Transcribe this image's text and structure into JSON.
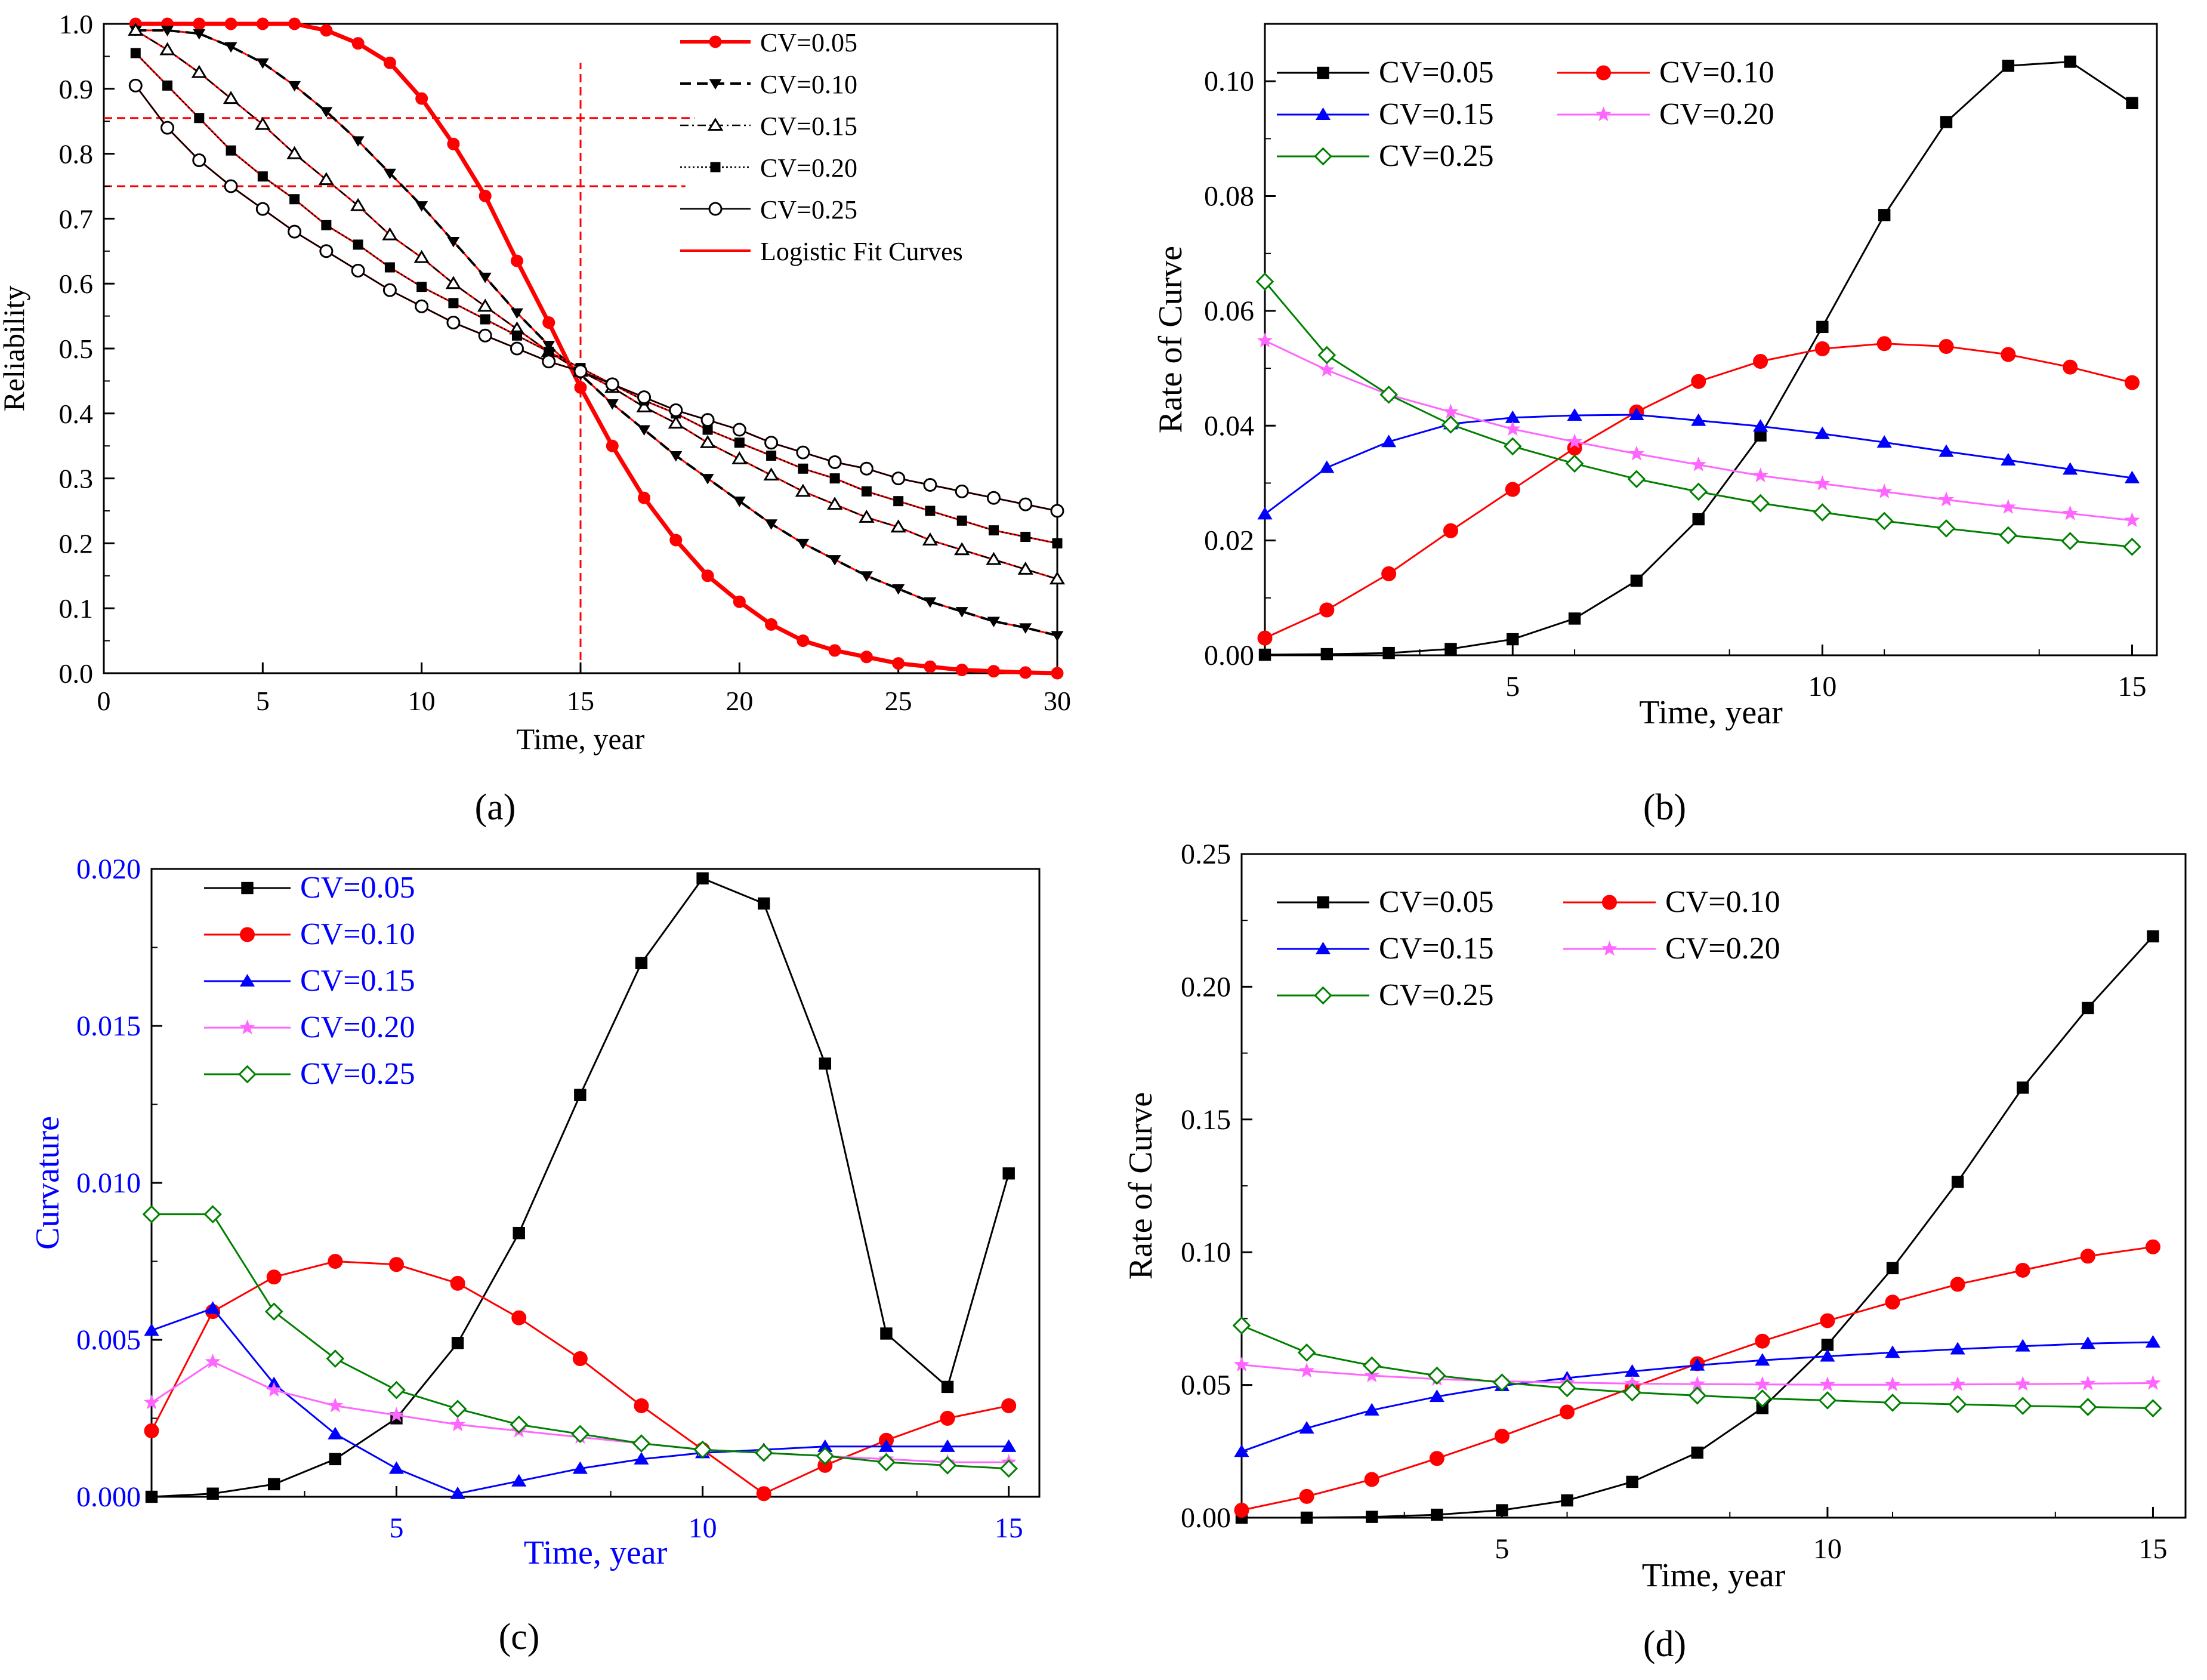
{
  "figure": {
    "style": {
      "black": "#000000",
      "red": "#ff0000",
      "blue": "#0000ff",
      "magenta": "#ff66ff",
      "green": "#008000",
      "fit_red": "#ff0000"
    }
  },
  "chart_data": [
    {
      "id": "a",
      "panel_label": "(a)",
      "type": "line",
      "xlabel": "Time, year",
      "ylabel": "Reliability",
      "xlim": [
        0,
        30
      ],
      "ylim": [
        0,
        1.0
      ],
      "xticks": [
        0,
        5,
        10,
        15,
        20,
        25,
        30
      ],
      "xtick_labels": [
        "0",
        "5",
        "10",
        "15",
        "20",
        "25",
        "30"
      ],
      "yticks": [
        0.0,
        0.1,
        0.2,
        0.3,
        0.4,
        0.5,
        0.6,
        0.7,
        0.8,
        0.9,
        1.0
      ],
      "ytick_labels": [
        "0.0",
        "0.1",
        "0.2",
        "0.3",
        "0.4",
        "0.5",
        "0.6",
        "0.7",
        "0.8",
        "0.9",
        "1.0"
      ],
      "x": [
        1,
        2,
        3,
        4,
        5,
        6,
        7,
        8,
        9,
        10,
        11,
        12,
        13,
        14,
        15,
        16,
        17,
        18,
        19,
        20,
        21,
        22,
        23,
        24,
        25,
        26,
        27,
        28,
        29,
        30
      ],
      "series": [
        {
          "name": "CV=0.05",
          "marker": "circle-filled",
          "color": "#ff0000",
          "line": "solid-thick",
          "values": [
            1.0,
            1.0,
            1.0,
            1.0,
            1.0,
            1.0,
            0.99,
            0.97,
            0.94,
            0.885,
            0.815,
            0.735,
            0.635,
            0.54,
            0.44,
            0.35,
            0.27,
            0.205,
            0.15,
            0.11,
            0.075,
            0.05,
            0.035,
            0.025,
            0.015,
            0.01,
            0.005,
            0.003,
            0.001,
            0.0
          ]
        },
        {
          "name": "CV=0.10",
          "marker": "triangle-down-filled",
          "color": "#000000",
          "line": "dashed",
          "values": [
            0.99,
            0.99,
            0.985,
            0.965,
            0.94,
            0.905,
            0.865,
            0.82,
            0.77,
            0.72,
            0.665,
            0.61,
            0.555,
            0.505,
            0.46,
            0.415,
            0.375,
            0.335,
            0.3,
            0.265,
            0.23,
            0.2,
            0.175,
            0.15,
            0.13,
            0.11,
            0.095,
            0.08,
            0.07,
            0.058
          ]
        },
        {
          "name": "CV=0.15",
          "marker": "triangle-up-open",
          "color": "#000000",
          "line": "dashdot",
          "values": [
            0.99,
            0.96,
            0.925,
            0.885,
            0.845,
            0.8,
            0.76,
            0.72,
            0.675,
            0.64,
            0.6,
            0.565,
            0.53,
            0.495,
            0.465,
            0.44,
            0.41,
            0.385,
            0.355,
            0.33,
            0.305,
            0.28,
            0.26,
            0.24,
            0.225,
            0.205,
            0.19,
            0.175,
            0.16,
            0.145
          ]
        },
        {
          "name": "CV=0.20",
          "marker": "square-filled",
          "color": "#000000",
          "line": "dotted",
          "values": [
            0.955,
            0.905,
            0.855,
            0.805,
            0.765,
            0.73,
            0.69,
            0.66,
            0.625,
            0.595,
            0.57,
            0.545,
            0.52,
            0.495,
            0.47,
            0.445,
            0.42,
            0.4,
            0.375,
            0.355,
            0.335,
            0.315,
            0.3,
            0.28,
            0.265,
            0.25,
            0.235,
            0.22,
            0.21,
            0.2
          ]
        },
        {
          "name": "CV=0.25",
          "marker": "circle-open",
          "color": "#000000",
          "line": "solid-thin",
          "values": [
            0.905,
            0.84,
            0.79,
            0.75,
            0.715,
            0.68,
            0.65,
            0.62,
            0.59,
            0.565,
            0.54,
            0.52,
            0.5,
            0.48,
            0.465,
            0.445,
            0.425,
            0.405,
            0.39,
            0.375,
            0.355,
            0.34,
            0.325,
            0.315,
            0.3,
            0.29,
            0.28,
            0.27,
            0.26,
            0.25
          ]
        }
      ],
      "legend_extra": "Logistic Fit Curves",
      "reference_lines": [
        {
          "axis": "y",
          "value": 0.855,
          "x_range": [
            0,
            18.6
          ]
        },
        {
          "axis": "y",
          "value": 0.75,
          "x_range": [
            0,
            18.3
          ]
        },
        {
          "axis": "x",
          "value": 15,
          "y_range": [
            0,
            0.94
          ]
        }
      ],
      "legend_position": "top-right"
    },
    {
      "id": "b",
      "panel_label": "(b)",
      "type": "line",
      "xlabel": "Time, year",
      "ylabel": "Rate of Curve",
      "xlim": [
        1,
        15.4
      ],
      "ylim": [
        0,
        0.11
      ],
      "xticks": [
        5,
        10,
        15
      ],
      "xtick_labels": [
        "5",
        "10",
        "15"
      ],
      "yticks": [
        0.0,
        0.02,
        0.04,
        0.06,
        0.08,
        0.1
      ],
      "ytick_labels": [
        "0.00",
        "0.02",
        "0.04",
        "0.06",
        "0.08",
        "0.10"
      ],
      "x": [
        1,
        2,
        3,
        4,
        5,
        6,
        7,
        8,
        9,
        10,
        11,
        12,
        13,
        14,
        15
      ],
      "series": [
        {
          "name": "CV=0.05",
          "marker": "square",
          "color": "#000000",
          "values": [
            0.0001,
            0.0002,
            0.0004,
            0.0011,
            0.0028,
            0.0064,
            0.013,
            0.0237,
            0.0383,
            0.0572,
            0.0767,
            0.0929,
            0.1027,
            0.1034,
            0.0962
          ]
        },
        {
          "name": "CV=0.10",
          "marker": "circle",
          "color": "#ff0000",
          "values": [
            0.003,
            0.0079,
            0.0142,
            0.0217,
            0.0289,
            0.0361,
            0.0424,
            0.0477,
            0.0512,
            0.0534,
            0.0543,
            0.0538,
            0.0524,
            0.0502,
            0.0475
          ]
        },
        {
          "name": "CV=0.15",
          "marker": "triangle-up",
          "color": "#0000ff",
          "values": [
            0.0246,
            0.0327,
            0.0372,
            0.0403,
            0.0414,
            0.0418,
            0.0419,
            0.0409,
            0.0399,
            0.0386,
            0.0371,
            0.0355,
            0.034,
            0.0324,
            0.0309
          ]
        },
        {
          "name": "CV=0.20",
          "marker": "star",
          "color": "#ff66ff",
          "values": [
            0.0548,
            0.0497,
            0.0454,
            0.0424,
            0.0394,
            0.0372,
            0.0351,
            0.0332,
            0.0313,
            0.0299,
            0.0285,
            0.0271,
            0.0258,
            0.0247,
            0.0235
          ]
        },
        {
          "name": "CV=0.25",
          "marker": "diamond-open",
          "color": "#008000",
          "values": [
            0.0651,
            0.0523,
            0.0454,
            0.0402,
            0.0364,
            0.0334,
            0.0307,
            0.0285,
            0.0265,
            0.0249,
            0.0234,
            0.0221,
            0.0209,
            0.0199,
            0.0189
          ]
        }
      ],
      "legend_position": "top-left"
    },
    {
      "id": "c",
      "panel_label": "(c)",
      "type": "line",
      "xlabel": "Time, year",
      "ylabel": "Curvature",
      "xlim": [
        1,
        15.5
      ],
      "ylim": [
        0,
        0.02
      ],
      "xticks": [
        5,
        10,
        15
      ],
      "xtick_labels": [
        "5",
        "10",
        "15"
      ],
      "yticks": [
        0.0,
        0.005,
        0.01,
        0.015,
        0.02
      ],
      "ytick_labels": [
        "0.000",
        "0.005",
        "0.010",
        "0.015",
        "0.020"
      ],
      "x": [
        1,
        2,
        3,
        4,
        5,
        6,
        7,
        8,
        9,
        10,
        11,
        12,
        13,
        14,
        15
      ],
      "series": [
        {
          "name": "CV=0.05",
          "marker": "square",
          "color": "#000000",
          "values": [
            0.0,
            0.0001,
            0.0004,
            0.0012,
            0.0025,
            0.0049,
            0.0084,
            0.0128,
            0.017,
            0.0197,
            0.0189,
            0.0138,
            0.0052,
            0.0035,
            0.0103
          ]
        },
        {
          "name": "CV=0.10",
          "marker": "circle",
          "color": "#ff0000",
          "values": [
            0.0021,
            0.0059,
            0.007,
            0.0075,
            0.0074,
            0.0068,
            0.0057,
            0.0044,
            0.0029,
            0.0015,
            0.0001,
            0.001,
            0.0018,
            0.0025,
            0.0029
          ]
        },
        {
          "name": "CV=0.15",
          "marker": "triangle-up",
          "color": "#0000ff",
          "values": [
            0.0053,
            0.006,
            0.0036,
            0.002,
            0.0009,
            0.0001,
            0.0005,
            0.0009,
            0.0012,
            0.0014,
            0.0015,
            0.0016,
            0.0016,
            0.0016,
            0.0016
          ]
        },
        {
          "name": "CV=0.20",
          "marker": "star",
          "color": "#ff66ff",
          "values": [
            0.003,
            0.0043,
            0.0034,
            0.0029,
            0.0026,
            0.0023,
            0.0021,
            0.0019,
            0.0017,
            0.0015,
            0.0014,
            0.0013,
            0.0012,
            0.0011,
            0.0011
          ]
        },
        {
          "name": "CV=0.25",
          "marker": "diamond-open",
          "color": "#008000",
          "values": [
            0.009,
            0.009,
            0.0059,
            0.0044,
            0.0034,
            0.0028,
            0.0023,
            0.002,
            0.0017,
            0.0015,
            0.0014,
            0.0013,
            0.0011,
            0.001,
            0.0009
          ]
        }
      ],
      "legend_position": "top-left"
    },
    {
      "id": "d",
      "panel_label": "(d)",
      "type": "line",
      "xlabel": "Time, year",
      "ylabel": "Rate of Curve",
      "xlim": [
        1,
        15.5
      ],
      "ylim": [
        0,
        0.25
      ],
      "xticks": [
        5,
        10,
        15
      ],
      "xtick_labels": [
        "5",
        "10",
        "15"
      ],
      "yticks": [
        0.0,
        0.05,
        0.1,
        0.15,
        0.2,
        0.25
      ],
      "ytick_labels": [
        "0.00",
        "0.05",
        "0.10",
        "0.15",
        "0.20",
        "0.25"
      ],
      "x": [
        1,
        2,
        3,
        4,
        5,
        6,
        7,
        8,
        9,
        10,
        11,
        12,
        13,
        14,
        15
      ],
      "series": [
        {
          "name": "CV=0.05",
          "marker": "square",
          "color": "#000000",
          "values": [
            0.0,
            0.0,
            0.0003,
            0.0011,
            0.0028,
            0.0065,
            0.0135,
            0.0245,
            0.0413,
            0.0651,
            0.094,
            0.1265,
            0.162,
            0.192,
            0.219
          ]
        },
        {
          "name": "CV=0.10",
          "marker": "circle",
          "color": "#ff0000",
          "values": [
            0.0028,
            0.008,
            0.0144,
            0.0223,
            0.0307,
            0.0398,
            0.049,
            0.058,
            0.0665,
            0.0742,
            0.0812,
            0.0879,
            0.0932,
            0.0985,
            0.102
          ]
        },
        {
          "name": "CV=0.15",
          "marker": "triangle-up",
          "color": "#0000ff",
          "values": [
            0.0249,
            0.0337,
            0.0405,
            0.0456,
            0.0497,
            0.0526,
            0.0551,
            0.0574,
            0.0593,
            0.0608,
            0.0622,
            0.0635,
            0.0646,
            0.0656,
            0.0661
          ]
        },
        {
          "name": "CV=0.20",
          "marker": "star",
          "color": "#ff66ff",
          "values": [
            0.0576,
            0.0553,
            0.0535,
            0.0522,
            0.0514,
            0.0509,
            0.0505,
            0.0503,
            0.0502,
            0.0501,
            0.0501,
            0.0502,
            0.0503,
            0.0505,
            0.0507
          ]
        },
        {
          "name": "CV=0.25",
          "marker": "diamond-open",
          "color": "#008000",
          "values": [
            0.0724,
            0.0622,
            0.0573,
            0.0535,
            0.0509,
            0.0488,
            0.0472,
            0.046,
            0.0449,
            0.0442,
            0.0433,
            0.0427,
            0.0421,
            0.0417,
            0.0412
          ]
        }
      ],
      "legend_position": "top-left"
    }
  ]
}
